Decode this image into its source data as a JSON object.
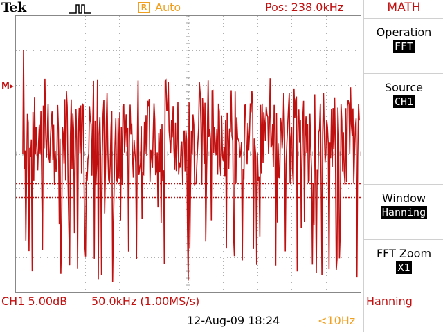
{
  "header": {
    "brand": "Tek",
    "trigger_icon": "pulse-trigger-icon",
    "run_badge": "R",
    "acquisition_mode": "Auto",
    "position": "Pos: 238.0kHz"
  },
  "screen": {
    "math_marker": "M▸",
    "trigger_position_marker": "▼",
    "trace_color": "#c01010",
    "cursor_color": "#c01010"
  },
  "menu": {
    "title": "MATH",
    "items": [
      {
        "label": "Operation",
        "value": "FFT"
      },
      {
        "label": "Source",
        "value": "CH1"
      },
      {
        "label": "",
        "value": ""
      },
      {
        "label": "Window",
        "value": "Hanning"
      },
      {
        "label": "FFT Zoom",
        "value": "X1"
      }
    ]
  },
  "status": {
    "channel_scale": "CH1 5.00dB",
    "frequency_scale": "50.0kHz (1.00MS/s)",
    "window": "Hanning",
    "date_time": "12-Aug-09 18:24",
    "trigger_frequency": "<10Hz"
  }
}
